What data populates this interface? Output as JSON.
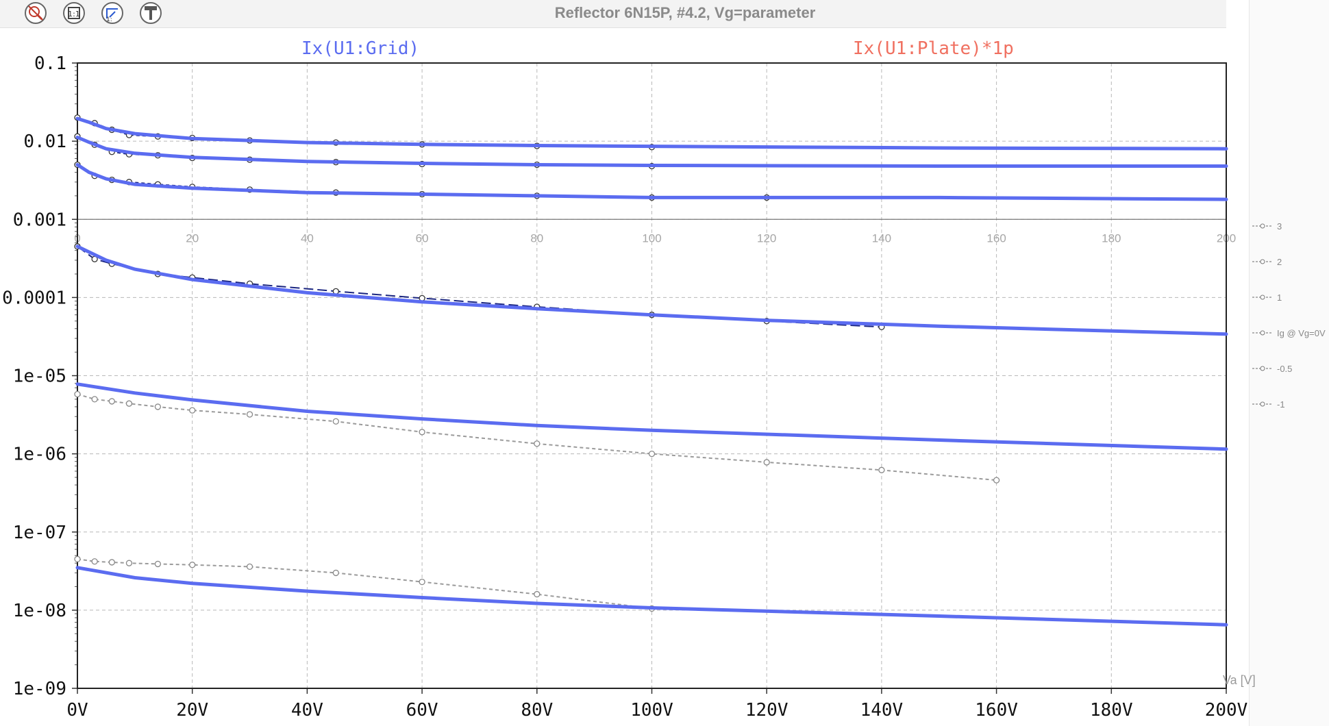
{
  "window": {
    "title": "Reflector 6N15P, #4.2, Vg=parameter"
  },
  "toolbar": {
    "buttons": [
      {
        "icon": "zoom-out-icon"
      },
      {
        "icon": "zoom-fit-icon"
      },
      {
        "icon": "zoom-back-icon"
      },
      {
        "icon": "pin-icon"
      }
    ]
  },
  "colors": {
    "grid_trace": "#5b6cf0",
    "plate_trace": "#f07060",
    "measured": "#9a9a9a",
    "measured_dark": "#1a2580",
    "grid": "#b8b8b8"
  },
  "chart_data": {
    "type": "line",
    "title": "Reflector 6N15P, #4.2, Vg=parameter",
    "header_traces": [
      "Ix(U1:Grid)",
      "Ix(U1:Plate)*1p"
    ],
    "xlabel": "Va [V]",
    "ylabel": "",
    "xlim": [
      0,
      200
    ],
    "ylim": [
      1e-09,
      0.1
    ],
    "yscale": "log",
    "grid": true,
    "x_ticks": [
      "0V",
      "20V",
      "40V",
      "60V",
      "80V",
      "100V",
      "120V",
      "140V",
      "160V",
      "180V",
      "200V"
    ],
    "y_ticks": [
      "0.1",
      "0.01",
      "0.001",
      "0.0001",
      "1e-05",
      "1e-06",
      "1e-07",
      "1e-08",
      "1e-09"
    ],
    "overlay_x_ticks": [
      "0",
      "20",
      "40",
      "60",
      "80",
      "100",
      "120",
      "140",
      "160",
      "180",
      "200"
    ],
    "legend": {
      "placement": "right",
      "entries": [
        "3",
        "2",
        "1",
        "Ig @ Vg=0V",
        "-0.5",
        "-1"
      ]
    },
    "series": [
      {
        "name": "3",
        "kind": "simulated",
        "x": [
          0,
          2,
          5,
          10,
          20,
          40,
          60,
          80,
          100,
          150,
          200
        ],
        "y": [
          0.0195,
          0.0175,
          0.0145,
          0.0125,
          0.0108,
          0.0096,
          0.0091,
          0.0088,
          0.0086,
          0.0082,
          0.008
        ]
      },
      {
        "name": "3",
        "kind": "measured",
        "x": [
          0,
          3,
          6,
          9,
          14,
          20,
          30,
          45,
          60,
          80,
          100
        ],
        "y": [
          0.02,
          0.017,
          0.014,
          0.012,
          0.0115,
          0.011,
          0.0102,
          0.0096,
          0.0091,
          0.0087,
          0.0084
        ]
      },
      {
        "name": "2",
        "kind": "simulated",
        "x": [
          0,
          2,
          5,
          10,
          20,
          40,
          60,
          80,
          100,
          150,
          200
        ],
        "y": [
          0.0112,
          0.0097,
          0.008,
          0.007,
          0.0062,
          0.0055,
          0.0052,
          0.005,
          0.0049,
          0.0048,
          0.0048
        ]
      },
      {
        "name": "2",
        "kind": "measured",
        "x": [
          0,
          3,
          6,
          9,
          14,
          20,
          30,
          45,
          60,
          80,
          100
        ],
        "y": [
          0.0115,
          0.009,
          0.0073,
          0.0068,
          0.0066,
          0.0061,
          0.0058,
          0.0054,
          0.0051,
          0.005,
          0.0048
        ]
      },
      {
        "name": "1",
        "kind": "simulated",
        "x": [
          0,
          2,
          5,
          10,
          20,
          40,
          60,
          80,
          100,
          120,
          150,
          200
        ],
        "y": [
          0.005,
          0.004,
          0.0033,
          0.0028,
          0.0025,
          0.0022,
          0.0021,
          0.002,
          0.0019,
          0.0019,
          0.0019,
          0.0018
        ]
      },
      {
        "name": "1",
        "kind": "measured",
        "x": [
          0,
          3,
          6,
          9,
          14,
          20,
          30,
          45,
          60,
          80,
          100,
          120
        ],
        "y": [
          0.005,
          0.0036,
          0.0032,
          0.003,
          0.0028,
          0.0026,
          0.0024,
          0.0022,
          0.0021,
          0.002,
          0.0019,
          0.0019
        ]
      },
      {
        "name": "Ig @ Vg=0V",
        "kind": "simulated",
        "x": [
          0,
          5,
          10,
          20,
          40,
          60,
          80,
          100,
          120,
          150,
          200
        ],
        "y": [
          0.00045,
          0.0003,
          0.00023,
          0.00017,
          0.000115,
          8.8e-05,
          7.2e-05,
          6e-05,
          5.1e-05,
          4.3e-05,
          3.4e-05
        ]
      },
      {
        "name": "Ig @ Vg=0V",
        "kind": "measured",
        "x": [
          0,
          3,
          6,
          14,
          20,
          30,
          45,
          60,
          80,
          100,
          120,
          140
        ],
        "y": [
          0.00045,
          0.00031,
          0.00027,
          0.0002,
          0.00018,
          0.00015,
          0.00012,
          9.8e-05,
          7.6e-05,
          6e-05,
          5e-05,
          4.2e-05
        ]
      },
      {
        "name": "-0.5",
        "kind": "simulated",
        "x": [
          0,
          10,
          20,
          40,
          60,
          80,
          100,
          150,
          200
        ],
        "y": [
          7.8e-06,
          6e-06,
          4.9e-06,
          3.5e-06,
          2.8e-06,
          2.3e-06,
          2e-06,
          1.5e-06,
          1.15e-06
        ]
      },
      {
        "name": "-0.5",
        "kind": "measured",
        "x": [
          0,
          3,
          6,
          9,
          14,
          20,
          30,
          45,
          60,
          80,
          100,
          120,
          140,
          160
        ],
        "y": [
          5.8e-06,
          5e-06,
          4.7e-06,
          4.4e-06,
          4e-06,
          3.6e-06,
          3.2e-06,
          2.6e-06,
          1.9e-06,
          1.35e-06,
          1e-06,
          7.8e-07,
          6.2e-07,
          4.6e-07
        ]
      },
      {
        "name": "-1",
        "kind": "simulated",
        "x": [
          0,
          10,
          20,
          40,
          60,
          80,
          100,
          150,
          200
        ],
        "y": [
          3.5e-08,
          2.6e-08,
          2.2e-08,
          1.75e-08,
          1.45e-08,
          1.22e-08,
          1.07e-08,
          8.4e-09,
          6.5e-09
        ]
      },
      {
        "name": "-1",
        "kind": "measured",
        "x": [
          0,
          3,
          6,
          9,
          14,
          20,
          30,
          45,
          60,
          80,
          100
        ],
        "y": [
          4.5e-08,
          4.2e-08,
          4.1e-08,
          4e-08,
          3.9e-08,
          3.8e-08,
          3.6e-08,
          3e-08,
          2.3e-08,
          1.6e-08,
          1.05e-08
        ]
      }
    ]
  }
}
